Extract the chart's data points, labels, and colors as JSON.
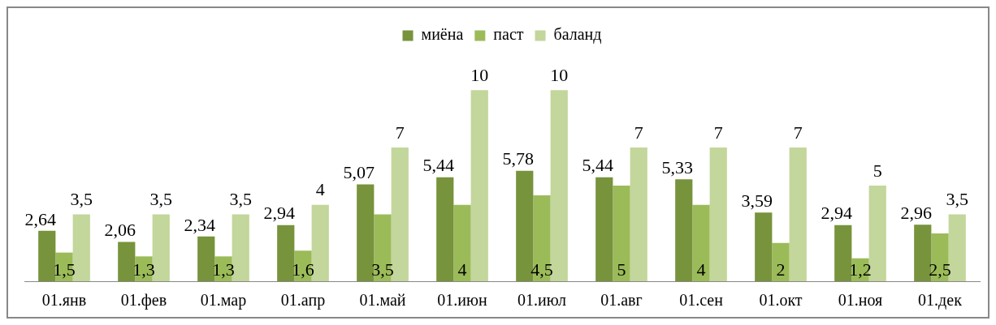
{
  "chart_data": {
    "type": "bar",
    "categories": [
      "01.янв",
      "01.фев",
      "01.мар",
      "01.апр",
      "01.май",
      "01.июн",
      "01.июл",
      "01.авг",
      "01.сен",
      "01.окт",
      "01.ноя",
      "01.дек"
    ],
    "series": [
      {
        "name": "миёна",
        "color": "#77933c",
        "values": [
          2.64,
          2.06,
          2.34,
          2.94,
          5.07,
          5.44,
          5.78,
          5.44,
          5.33,
          3.59,
          2.94,
          2.96
        ],
        "value_labels": [
          "2,64",
          "2,06",
          "2,34",
          "2,94",
          "5,07",
          "5,44",
          "5,78",
          "5,44",
          "5,33",
          "3,59",
          "2,94",
          "2,96"
        ]
      },
      {
        "name": "паст",
        "color": "#9bbb59",
        "values": [
          1.5,
          1.3,
          1.3,
          1.6,
          3.5,
          4,
          4.5,
          5,
          4,
          2,
          1.2,
          2.5
        ],
        "value_labels": [
          "1,5",
          "1,3",
          "1,3",
          "1,6",
          "3,5",
          "4",
          "4,5",
          "5",
          "4",
          "2",
          "1,2",
          "2,5"
        ]
      },
      {
        "name": "баланд",
        "color": "#c3d69b",
        "values": [
          3.5,
          3.5,
          3.5,
          4,
          7,
          10,
          10,
          7,
          7,
          7,
          5,
          3.5
        ],
        "value_labels": [
          "3,5",
          "3,5",
          "3,5",
          "4",
          "7",
          "10",
          "10",
          "7",
          "7",
          "7",
          "5",
          "3,5"
        ]
      }
    ],
    "grid": false,
    "legend": "top"
  }
}
